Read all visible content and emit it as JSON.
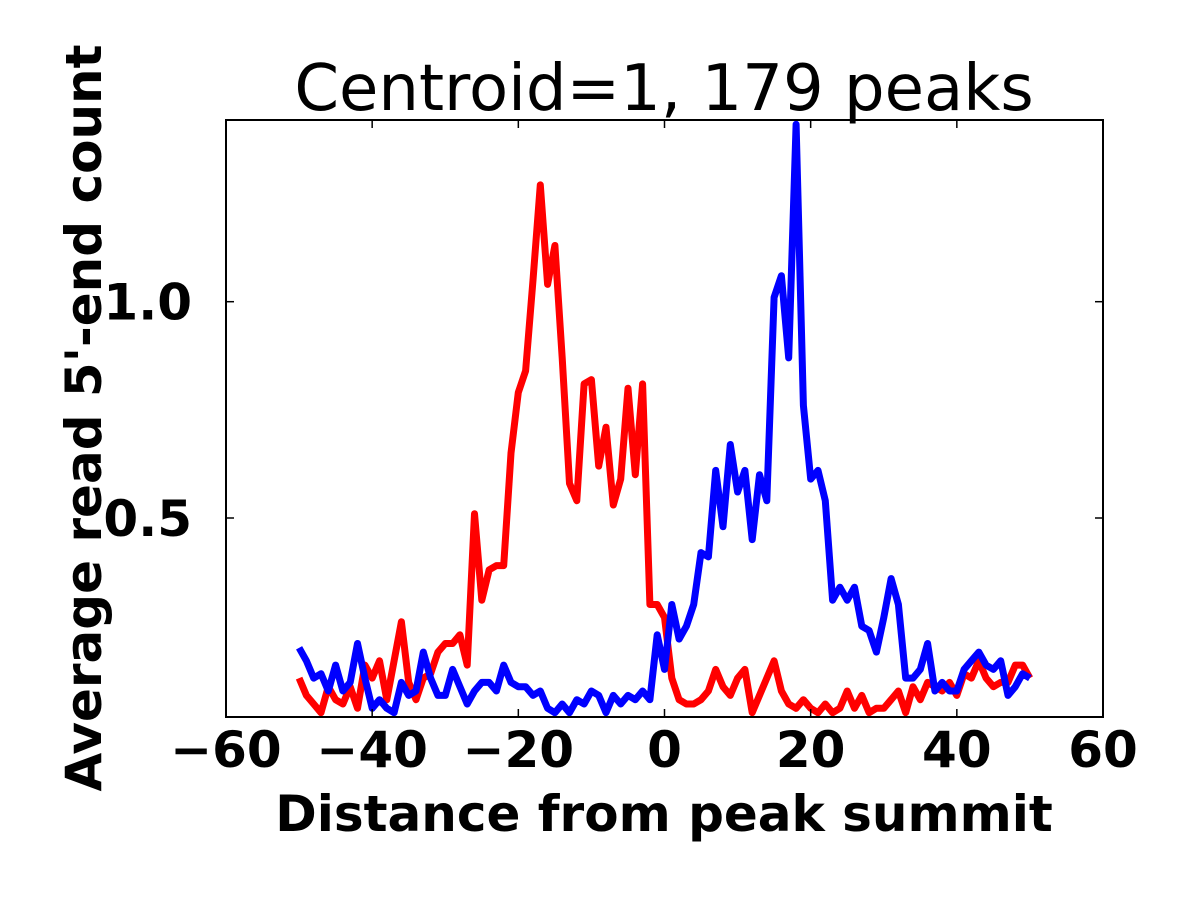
{
  "chart_data": {
    "type": "line",
    "title": "Centroid=1, 179 peaks",
    "xlabel": "Distance from peak summit",
    "ylabel": "Average read 5'-end count",
    "xlim": [
      -60,
      60
    ],
    "ylim": [
      0.04,
      1.42
    ],
    "x_ticks": [
      -60,
      -40,
      -20,
      0,
      20,
      40,
      60
    ],
    "x_tick_labels": [
      "−60",
      "−40",
      "−20",
      "0",
      "20",
      "40",
      "60"
    ],
    "y_ticks": [
      0.5,
      1.0
    ],
    "y_tick_labels": [
      "0.5",
      "1.0"
    ],
    "grid": false,
    "legend": "none",
    "x": [
      -50,
      -49,
      -48,
      -47,
      -46,
      -45,
      -44,
      -43,
      -42,
      -41,
      -40,
      -39,
      -38,
      -37,
      -36,
      -35,
      -34,
      -33,
      -32,
      -31,
      -30,
      -29,
      -28,
      -27,
      -26,
      -25,
      -24,
      -23,
      -22,
      -21,
      -20,
      -19,
      -18,
      -17,
      -16,
      -15,
      -14,
      -13,
      -12,
      -11,
      -10,
      -9,
      -8,
      -7,
      -6,
      -5,
      -4,
      -3,
      -2,
      -1,
      0,
      1,
      2,
      3,
      4,
      5,
      6,
      7,
      8,
      9,
      10,
      11,
      12,
      13,
      14,
      15,
      16,
      17,
      18,
      19,
      20,
      21,
      22,
      23,
      24,
      25,
      26,
      27,
      28,
      29,
      30,
      31,
      32,
      33,
      34,
      35,
      36,
      37,
      38,
      39,
      40,
      41,
      42,
      43,
      44,
      45,
      46,
      47,
      48,
      49,
      50
    ],
    "series": [
      {
        "color": "#ff0000",
        "values": [
          0.13,
          0.09,
          0.07,
          0.05,
          0.11,
          0.08,
          0.07,
          0.11,
          0.06,
          0.16,
          0.13,
          0.17,
          0.08,
          0.17,
          0.26,
          0.12,
          0.08,
          0.13,
          0.14,
          0.19,
          0.21,
          0.21,
          0.23,
          0.16,
          0.51,
          0.31,
          0.38,
          0.39,
          0.39,
          0.65,
          0.79,
          0.84,
          1.05,
          1.27,
          1.04,
          1.13,
          0.87,
          0.58,
          0.54,
          0.81,
          0.82,
          0.62,
          0.71,
          0.53,
          0.59,
          0.8,
          0.6,
          0.81,
          0.3,
          0.3,
          0.27,
          0.13,
          0.08,
          0.07,
          0.07,
          0.08,
          0.1,
          0.15,
          0.11,
          0.09,
          0.13,
          0.15,
          0.05,
          0.09,
          0.13,
          0.17,
          0.1,
          0.07,
          0.06,
          0.08,
          0.06,
          0.05,
          0.07,
          0.05,
          0.06,
          0.1,
          0.06,
          0.09,
          0.05,
          0.06,
          0.06,
          0.08,
          0.1,
          0.05,
          0.11,
          0.08,
          0.12,
          0.11,
          0.1,
          0.12,
          0.09,
          0.14,
          0.13,
          0.17,
          0.13,
          0.11,
          0.12,
          0.12,
          0.16,
          0.16,
          0.13
        ]
      },
      {
        "color": "#0000ff",
        "values": [
          0.2,
          0.17,
          0.13,
          0.14,
          0.1,
          0.16,
          0.1,
          0.12,
          0.21,
          0.13,
          0.06,
          0.08,
          0.06,
          0.05,
          0.12,
          0.09,
          0.1,
          0.19,
          0.13,
          0.09,
          0.09,
          0.15,
          0.11,
          0.07,
          0.1,
          0.12,
          0.12,
          0.1,
          0.16,
          0.12,
          0.11,
          0.11,
          0.09,
          0.1,
          0.06,
          0.05,
          0.07,
          0.05,
          0.08,
          0.07,
          0.1,
          0.09,
          0.05,
          0.09,
          0.07,
          0.09,
          0.08,
          0.1,
          0.08,
          0.23,
          0.15,
          0.3,
          0.22,
          0.25,
          0.3,
          0.42,
          0.41,
          0.61,
          0.48,
          0.67,
          0.56,
          0.61,
          0.45,
          0.6,
          0.54,
          1.01,
          1.06,
          0.87,
          1.41,
          0.76,
          0.59,
          0.61,
          0.54,
          0.31,
          0.34,
          0.31,
          0.34,
          0.25,
          0.24,
          0.19,
          0.27,
          0.36,
          0.3,
          0.13,
          0.13,
          0.15,
          0.21,
          0.1,
          0.12,
          0.1,
          0.1,
          0.15,
          0.17,
          0.19,
          0.16,
          0.15,
          0.17,
          0.09,
          0.11,
          0.14,
          0.13
        ]
      }
    ]
  }
}
